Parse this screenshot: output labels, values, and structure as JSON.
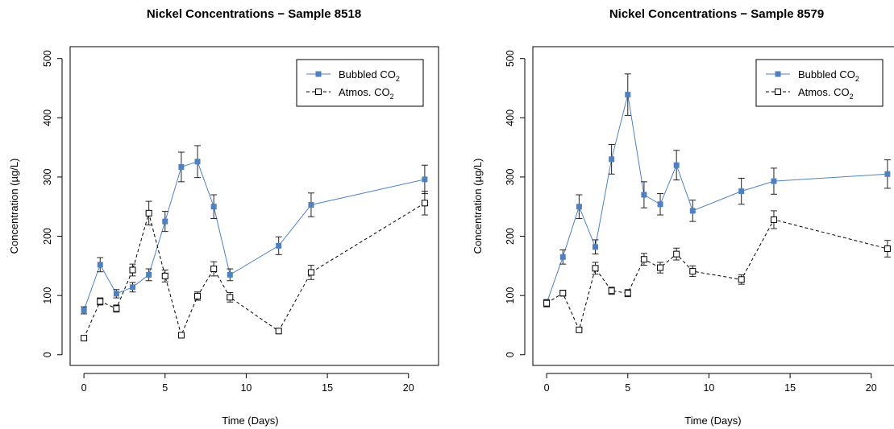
{
  "colors": {
    "bubbled": "#4f81c0",
    "atmos": "#000000",
    "error_bar": "#222222"
  },
  "chart_data": [
    {
      "type": "line",
      "title": "Nickel Concentrations − Sample 8518",
      "xlabel": "Time (Days)",
      "ylabel": "Concentration (µg/L)",
      "xlim": [
        0,
        21
      ],
      "ylim": [
        0,
        500
      ],
      "x_ticks": [
        0,
        5,
        10,
        15,
        20
      ],
      "y_ticks": [
        0,
        100,
        200,
        300,
        400,
        500
      ],
      "legend": {
        "position": "top-right",
        "entries": [
          {
            "base": "Bubbled CO",
            "sub": "2"
          },
          {
            "base": "Atmos. CO",
            "sub": "2"
          }
        ]
      },
      "series": [
        {
          "name": "Bubbled CO2",
          "x": [
            0,
            1,
            2,
            3,
            4,
            5,
            6,
            7,
            8,
            9,
            12,
            14,
            21
          ],
          "y": [
            75,
            152,
            103,
            114,
            135,
            225,
            317,
            326,
            250,
            135,
            184,
            253,
            296
          ],
          "err": [
            6,
            12,
            7,
            8,
            10,
            17,
            25,
            27,
            20,
            10,
            15,
            20,
            24
          ]
        },
        {
          "name": "Atmos. CO2",
          "x": [
            0,
            1,
            2,
            3,
            4,
            5,
            6,
            7,
            8,
            9,
            12,
            14,
            21
          ],
          "y": [
            28,
            90,
            78,
            143,
            239,
            133,
            33,
            99,
            145,
            97,
            40,
            139,
            256
          ],
          "err": [
            0,
            6,
            6,
            10,
            20,
            10,
            0,
            7,
            12,
            8,
            0,
            12,
            20
          ]
        }
      ]
    },
    {
      "type": "line",
      "title": "Nickel Concentrations − Sample 8579",
      "xlabel": "Time (Days)",
      "ylabel": "Concentration (µg/L)",
      "xlim": [
        0,
        21
      ],
      "ylim": [
        0,
        500
      ],
      "x_ticks": [
        0,
        5,
        10,
        15,
        20
      ],
      "y_ticks": [
        0,
        100,
        200,
        300,
        400,
        500
      ],
      "legend": {
        "position": "top-right",
        "entries": [
          {
            "base": "Bubbled CO",
            "sub": "2"
          },
          {
            "base": "Atmos. CO",
            "sub": "2"
          }
        ]
      },
      "series": [
        {
          "name": "Bubbled CO2",
          "x": [
            0,
            1,
            2,
            3,
            4,
            5,
            6,
            7,
            8,
            9,
            12,
            14,
            21
          ],
          "y": [
            87,
            165,
            250,
            182,
            330,
            439,
            270,
            254,
            320,
            243,
            276,
            293,
            305
          ],
          "err": [
            6,
            12,
            20,
            12,
            25,
            35,
            22,
            18,
            25,
            18,
            22,
            22,
            24
          ]
        },
        {
          "name": "Atmos. CO2",
          "x": [
            0,
            1,
            2,
            3,
            4,
            5,
            6,
            7,
            8,
            9,
            12,
            14,
            21
          ],
          "y": [
            87,
            104,
            42,
            146,
            108,
            104,
            161,
            147,
            170,
            141,
            127,
            228,
            179
          ],
          "err": [
            6,
            5,
            0,
            10,
            6,
            6,
            10,
            9,
            10,
            9,
            8,
            15,
            14
          ]
        }
      ]
    }
  ]
}
